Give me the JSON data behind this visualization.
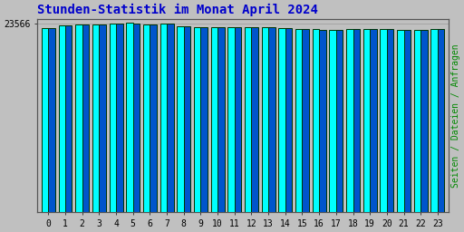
{
  "title": "Stunden-Statistik im Monat April 2024",
  "title_color": "#0000cc",
  "title_fontsize": 10,
  "ylabel_right": "Seiten / Dateien / Anfragen",
  "ylabel_right_color": "#008800",
  "background_color": "#c0c0c0",
  "plot_bg_color": "#c0c0c0",
  "categories": [
    0,
    1,
    2,
    3,
    4,
    5,
    6,
    7,
    8,
    9,
    10,
    11,
    12,
    13,
    14,
    15,
    16,
    17,
    18,
    19,
    20,
    21,
    22,
    23
  ],
  "values1": [
    23100,
    23380,
    23490,
    23560,
    23650,
    23700,
    23540,
    23600,
    23280,
    23210,
    23190,
    23140,
    23170,
    23140,
    23060,
    22950,
    22890,
    22850,
    22960,
    22970,
    22960,
    22810,
    22830,
    22950
  ],
  "values2": [
    23050,
    23340,
    23460,
    23530,
    23620,
    23670,
    23510,
    23570,
    23250,
    23180,
    23160,
    23110,
    23140,
    23110,
    23030,
    22920,
    22860,
    22820,
    22930,
    22940,
    22930,
    22780,
    22800,
    22920
  ],
  "bar_color1": "#00ffff",
  "bar_color2": "#0055cc",
  "bar_edge_color": "#003300",
  "bar_width": 0.4,
  "ylim_min": 0,
  "ylim_max": 24200,
  "ytick_val": 23566,
  "ytick_label": "23566",
  "font_family": "monospace",
  "tick_fontsize": 7,
  "title_fontweight": "bold"
}
